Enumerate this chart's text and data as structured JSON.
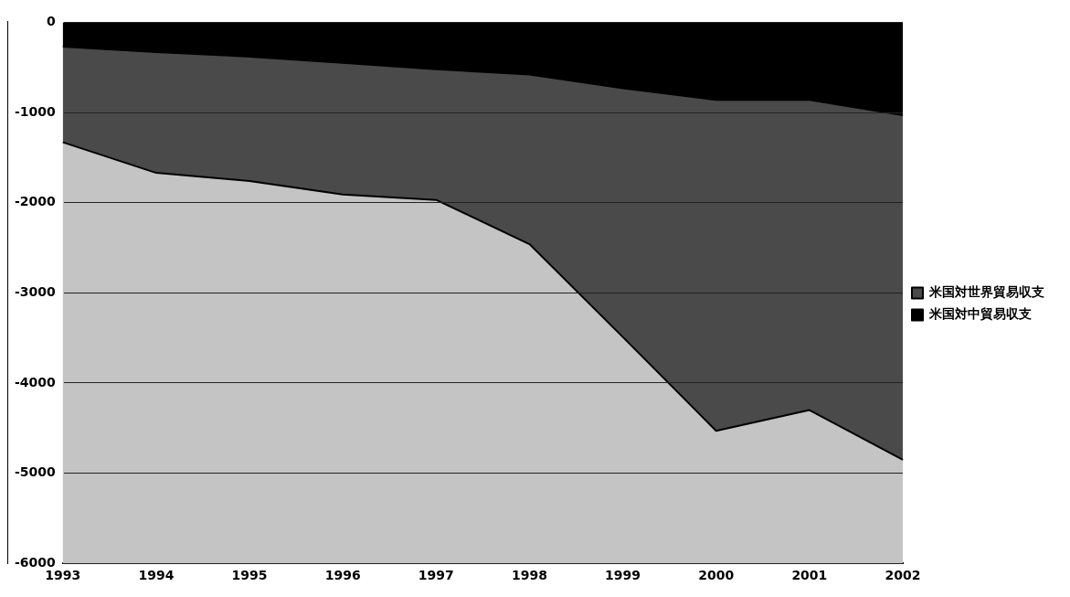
{
  "chart_data": {
    "type": "area",
    "categories": [
      "1993",
      "1994",
      "1995",
      "1996",
      "1997",
      "1998",
      "1999",
      "2000",
      "2001",
      "2002"
    ],
    "series": [
      {
        "name": "米国対世界貿易収支",
        "color": "#4a4a4a",
        "values": [
          -1330,
          -1670,
          -1760,
          -1910,
          -1970,
          -2460,
          -3490,
          -4530,
          -4300,
          -4850
        ]
      },
      {
        "name": "米国対中貿易収支",
        "color": "#000000",
        "values": [
          -270,
          -330,
          -380,
          -450,
          -520,
          -580,
          -730,
          -860,
          -860,
          -1030
        ]
      }
    ],
    "ylim": [
      -6000,
      0
    ],
    "yticks": [
      0,
      -1000,
      -2000,
      -3000,
      -4000,
      -5000,
      -6000
    ],
    "grid": "y",
    "legend": "right"
  }
}
